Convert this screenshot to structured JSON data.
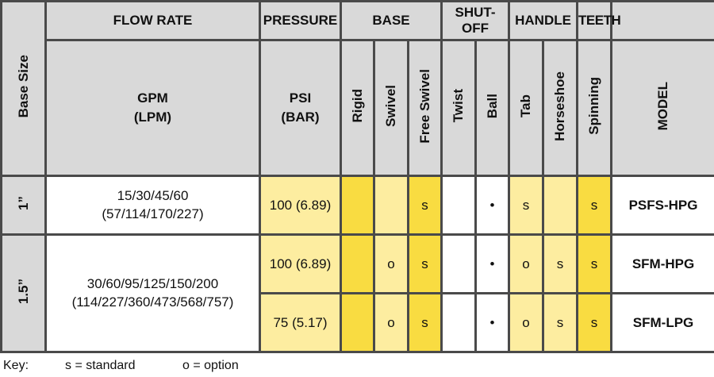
{
  "headers": {
    "base_size": "Base Size",
    "flow_rate": "FLOW RATE",
    "pressure": "PRESSURE",
    "base": "BASE",
    "shutoff": "SHUT-\nOFF",
    "shutoff_line1": "SHUT-",
    "shutoff_line2": "OFF",
    "handle": "HANDLE",
    "teeth": "TEETH",
    "gpm": "GPM",
    "lpm": "(LPM)",
    "psi": "PSI",
    "bar": "(BAR)",
    "rigid": "Rigid",
    "swivel": "Swivel",
    "free_swivel": "Free Swivel",
    "twist": "Twist",
    "ball": "Ball",
    "tab": "Tab",
    "horseshoe": "Horseshoe",
    "spinning": "Spinning",
    "model": "MODEL"
  },
  "rows": [
    {
      "size": "1”",
      "flow_line1": "15/30/45/60",
      "flow_line2": "(57/114/170/227)",
      "pressure": "100 (6.89)",
      "rigid": "",
      "swivel": "",
      "free_swivel": "s",
      "twist": "",
      "ball": "•",
      "tab": "s",
      "horseshoe": "",
      "spinning": "s",
      "model": "PSFS-HPG"
    },
    {
      "size": "1.5”",
      "flow_line1": "30/60/95/125/150/200",
      "flow_line2": "(114/227/360/473/568/757)",
      "pressure": "100 (6.89)",
      "rigid": "",
      "swivel": "o",
      "free_swivel": "s",
      "twist": "",
      "ball": "•",
      "tab": "o",
      "horseshoe": "s",
      "spinning": "s",
      "model": "SFM-HPG"
    },
    {
      "pressure": "75 (5.17)",
      "rigid": "",
      "swivel": "o",
      "free_swivel": "s",
      "twist": "",
      "ball": "•",
      "tab": "o",
      "horseshoe": "s",
      "spinning": "s",
      "model": "SFM-LPG"
    }
  ],
  "key": {
    "label": "Key:",
    "standard": "s = standard",
    "option": "o = option"
  }
}
